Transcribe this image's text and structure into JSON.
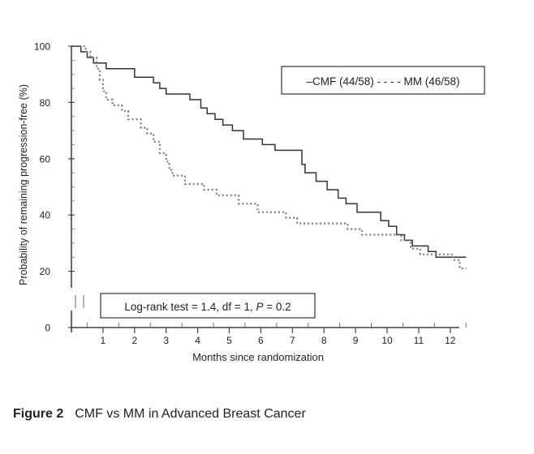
{
  "chart_data": {
    "type": "line",
    "title": "",
    "xlabel": "Months since randomization",
    "ylabel": "Probability of remaining progression-free (%)",
    "xlim": [
      0,
      12.5
    ],
    "ylim": [
      0,
      100
    ],
    "x_ticks": [
      "1",
      "2",
      "3",
      "4",
      "5",
      "6",
      "7",
      "8",
      "9",
      "10",
      "11",
      "12"
    ],
    "y_ticks": [
      "0",
      "20",
      "40",
      "60",
      "80",
      "100"
    ],
    "y_axis_break": true,
    "legend": {
      "position": "top-right",
      "text": "–CMF (44/58) - - - - MM (46/58)"
    },
    "annotation": {
      "prefix": "Log-rank test = 1.4, df = 1, ",
      "p_label": "P",
      "suffix": " = 0.2"
    },
    "series": [
      {
        "name": "CMF (44/58)",
        "style": "solid",
        "points": [
          [
            0,
            100
          ],
          [
            0.3,
            100
          ],
          [
            0.3,
            98
          ],
          [
            0.5,
            98
          ],
          [
            0.5,
            96
          ],
          [
            0.7,
            96
          ],
          [
            0.7,
            94
          ],
          [
            1.1,
            94
          ],
          [
            1.1,
            92
          ],
          [
            2.0,
            92
          ],
          [
            2.0,
            89
          ],
          [
            2.6,
            89
          ],
          [
            2.6,
            87
          ],
          [
            2.8,
            87
          ],
          [
            2.8,
            85
          ],
          [
            3.0,
            85
          ],
          [
            3.0,
            83
          ],
          [
            3.75,
            83
          ],
          [
            3.75,
            81
          ],
          [
            4.1,
            81
          ],
          [
            4.1,
            78
          ],
          [
            4.3,
            78
          ],
          [
            4.3,
            76
          ],
          [
            4.55,
            76
          ],
          [
            4.55,
            74
          ],
          [
            4.8,
            74
          ],
          [
            4.8,
            72
          ],
          [
            5.1,
            72
          ],
          [
            5.1,
            70
          ],
          [
            5.45,
            70
          ],
          [
            5.45,
            67
          ],
          [
            6.05,
            67
          ],
          [
            6.05,
            65
          ],
          [
            6.45,
            65
          ],
          [
            6.45,
            63
          ],
          [
            7.3,
            63
          ],
          [
            7.3,
            58
          ],
          [
            7.4,
            58
          ],
          [
            7.4,
            55
          ],
          [
            7.75,
            55
          ],
          [
            7.75,
            52
          ],
          [
            8.1,
            52
          ],
          [
            8.1,
            49
          ],
          [
            8.45,
            49
          ],
          [
            8.45,
            46
          ],
          [
            8.7,
            46
          ],
          [
            8.7,
            44
          ],
          [
            9.05,
            44
          ],
          [
            9.05,
            41
          ],
          [
            9.8,
            41
          ],
          [
            9.8,
            38
          ],
          [
            10.05,
            38
          ],
          [
            10.05,
            36
          ],
          [
            10.3,
            36
          ],
          [
            10.3,
            33
          ],
          [
            10.55,
            33
          ],
          [
            10.55,
            31
          ],
          [
            10.8,
            31
          ],
          [
            10.8,
            29
          ],
          [
            11.3,
            29
          ],
          [
            11.3,
            27
          ],
          [
            11.55,
            27
          ],
          [
            11.55,
            25
          ],
          [
            12.5,
            25
          ]
        ]
      },
      {
        "name": "MM (46/58)",
        "style": "dotted",
        "points": [
          [
            0.25,
            100
          ],
          [
            0.45,
            100
          ],
          [
            0.45,
            98
          ],
          [
            0.6,
            98
          ],
          [
            0.6,
            96
          ],
          [
            0.8,
            96
          ],
          [
            0.8,
            92
          ],
          [
            0.9,
            92
          ],
          [
            0.9,
            88
          ],
          [
            1.0,
            88
          ],
          [
            1.0,
            84
          ],
          [
            1.1,
            84
          ],
          [
            1.1,
            81
          ],
          [
            1.3,
            81
          ],
          [
            1.3,
            79
          ],
          [
            1.6,
            79
          ],
          [
            1.6,
            77
          ],
          [
            1.8,
            77
          ],
          [
            1.8,
            74
          ],
          [
            2.2,
            74
          ],
          [
            2.2,
            71
          ],
          [
            2.4,
            71
          ],
          [
            2.4,
            69
          ],
          [
            2.6,
            69
          ],
          [
            2.6,
            66
          ],
          [
            2.8,
            66
          ],
          [
            2.8,
            62
          ],
          [
            3.0,
            62
          ],
          [
            3.0,
            59
          ],
          [
            3.1,
            59
          ],
          [
            3.1,
            56
          ],
          [
            3.2,
            56
          ],
          [
            3.2,
            54
          ],
          [
            3.6,
            54
          ],
          [
            3.6,
            51
          ],
          [
            4.2,
            51
          ],
          [
            4.2,
            49
          ],
          [
            4.6,
            49
          ],
          [
            4.6,
            47
          ],
          [
            5.3,
            47
          ],
          [
            5.3,
            44
          ],
          [
            5.9,
            44
          ],
          [
            5.9,
            41
          ],
          [
            6.8,
            41
          ],
          [
            6.8,
            39
          ],
          [
            7.15,
            39
          ],
          [
            7.15,
            37
          ],
          [
            8.75,
            37
          ],
          [
            8.75,
            35
          ],
          [
            9.2,
            35
          ],
          [
            9.2,
            33
          ],
          [
            10.45,
            33
          ],
          [
            10.45,
            31
          ],
          [
            10.75,
            31
          ],
          [
            10.75,
            28
          ],
          [
            11.05,
            28
          ],
          [
            11.05,
            26
          ],
          [
            12.1,
            26
          ],
          [
            12.1,
            24
          ],
          [
            12.3,
            24
          ],
          [
            12.3,
            21
          ],
          [
            12.5,
            21
          ]
        ]
      }
    ]
  },
  "caption": {
    "label": "Figure 2",
    "text": "CMF vs MM in Advanced Breast Cancer"
  }
}
